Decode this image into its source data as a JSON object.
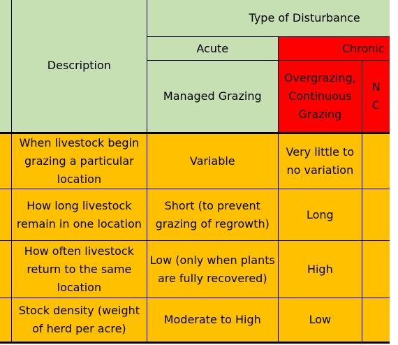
{
  "header": {
    "description_label": "Description",
    "type_of_disturbance": "Type of Disturbance",
    "acute": "Acute",
    "chronic": "Chronic",
    "managed_grazing": "Managed Grazing",
    "overgrazing": "Overgrazing, Continuous Grazing",
    "next_col_partial": "N C"
  },
  "rows": [
    {
      "description": "When livestock begin grazing a particular location",
      "managed": "Variable",
      "overgrazing": "Very little to no variation"
    },
    {
      "description": "How long livestock remain in one location",
      "managed": "Short (to prevent grazing of regrowth)",
      "overgrazing": "Long"
    },
    {
      "description": "How often livestock return to the same location",
      "managed": "Low (only when plants are fully recovered)",
      "overgrazing": "High"
    },
    {
      "description": "Stock density (weight of herd per acre)",
      "managed": "Moderate to High",
      "overgrazing": "Low"
    }
  ],
  "colors": {
    "header_green": "#c6e0b4",
    "chronic_red": "#ff0000",
    "body_orange": "#ffc000"
  }
}
